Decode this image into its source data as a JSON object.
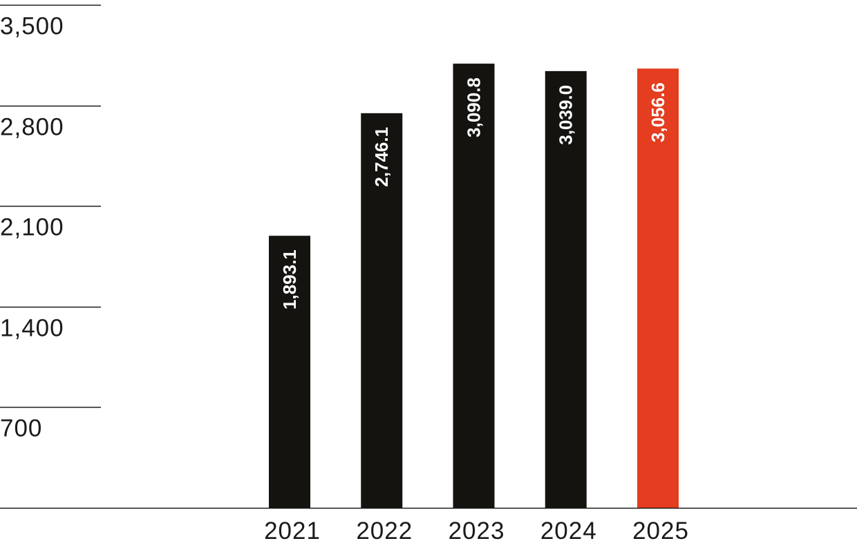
{
  "chart_data": {
    "type": "bar",
    "categories": [
      "2021",
      "2022",
      "2023",
      "2024",
      "2025"
    ],
    "values": [
      1893.1,
      2746.1,
      3090.8,
      3039.0,
      3056.6
    ],
    "value_labels": [
      "1,893.1",
      "2,746.1",
      "3,090.8",
      "3,039.0",
      "3,056.6"
    ],
    "bar_colors": [
      "#14130f",
      "#14130f",
      "#14130f",
      "#14130f",
      "#e43d1f"
    ],
    "yticks": [
      700,
      1400,
      2100,
      2800,
      3500
    ],
    "ytick_labels": [
      "700",
      "1,400",
      "2,100",
      "2,800",
      "3,500"
    ],
    "ylim": [
      0,
      3500
    ],
    "grid": false,
    "title": "",
    "xlabel": "",
    "ylabel": "",
    "colors": {
      "bar": "#14130f",
      "highlight": "#e43d1f",
      "text": "#1a1a1a",
      "rule": "#1a1a1a"
    }
  }
}
